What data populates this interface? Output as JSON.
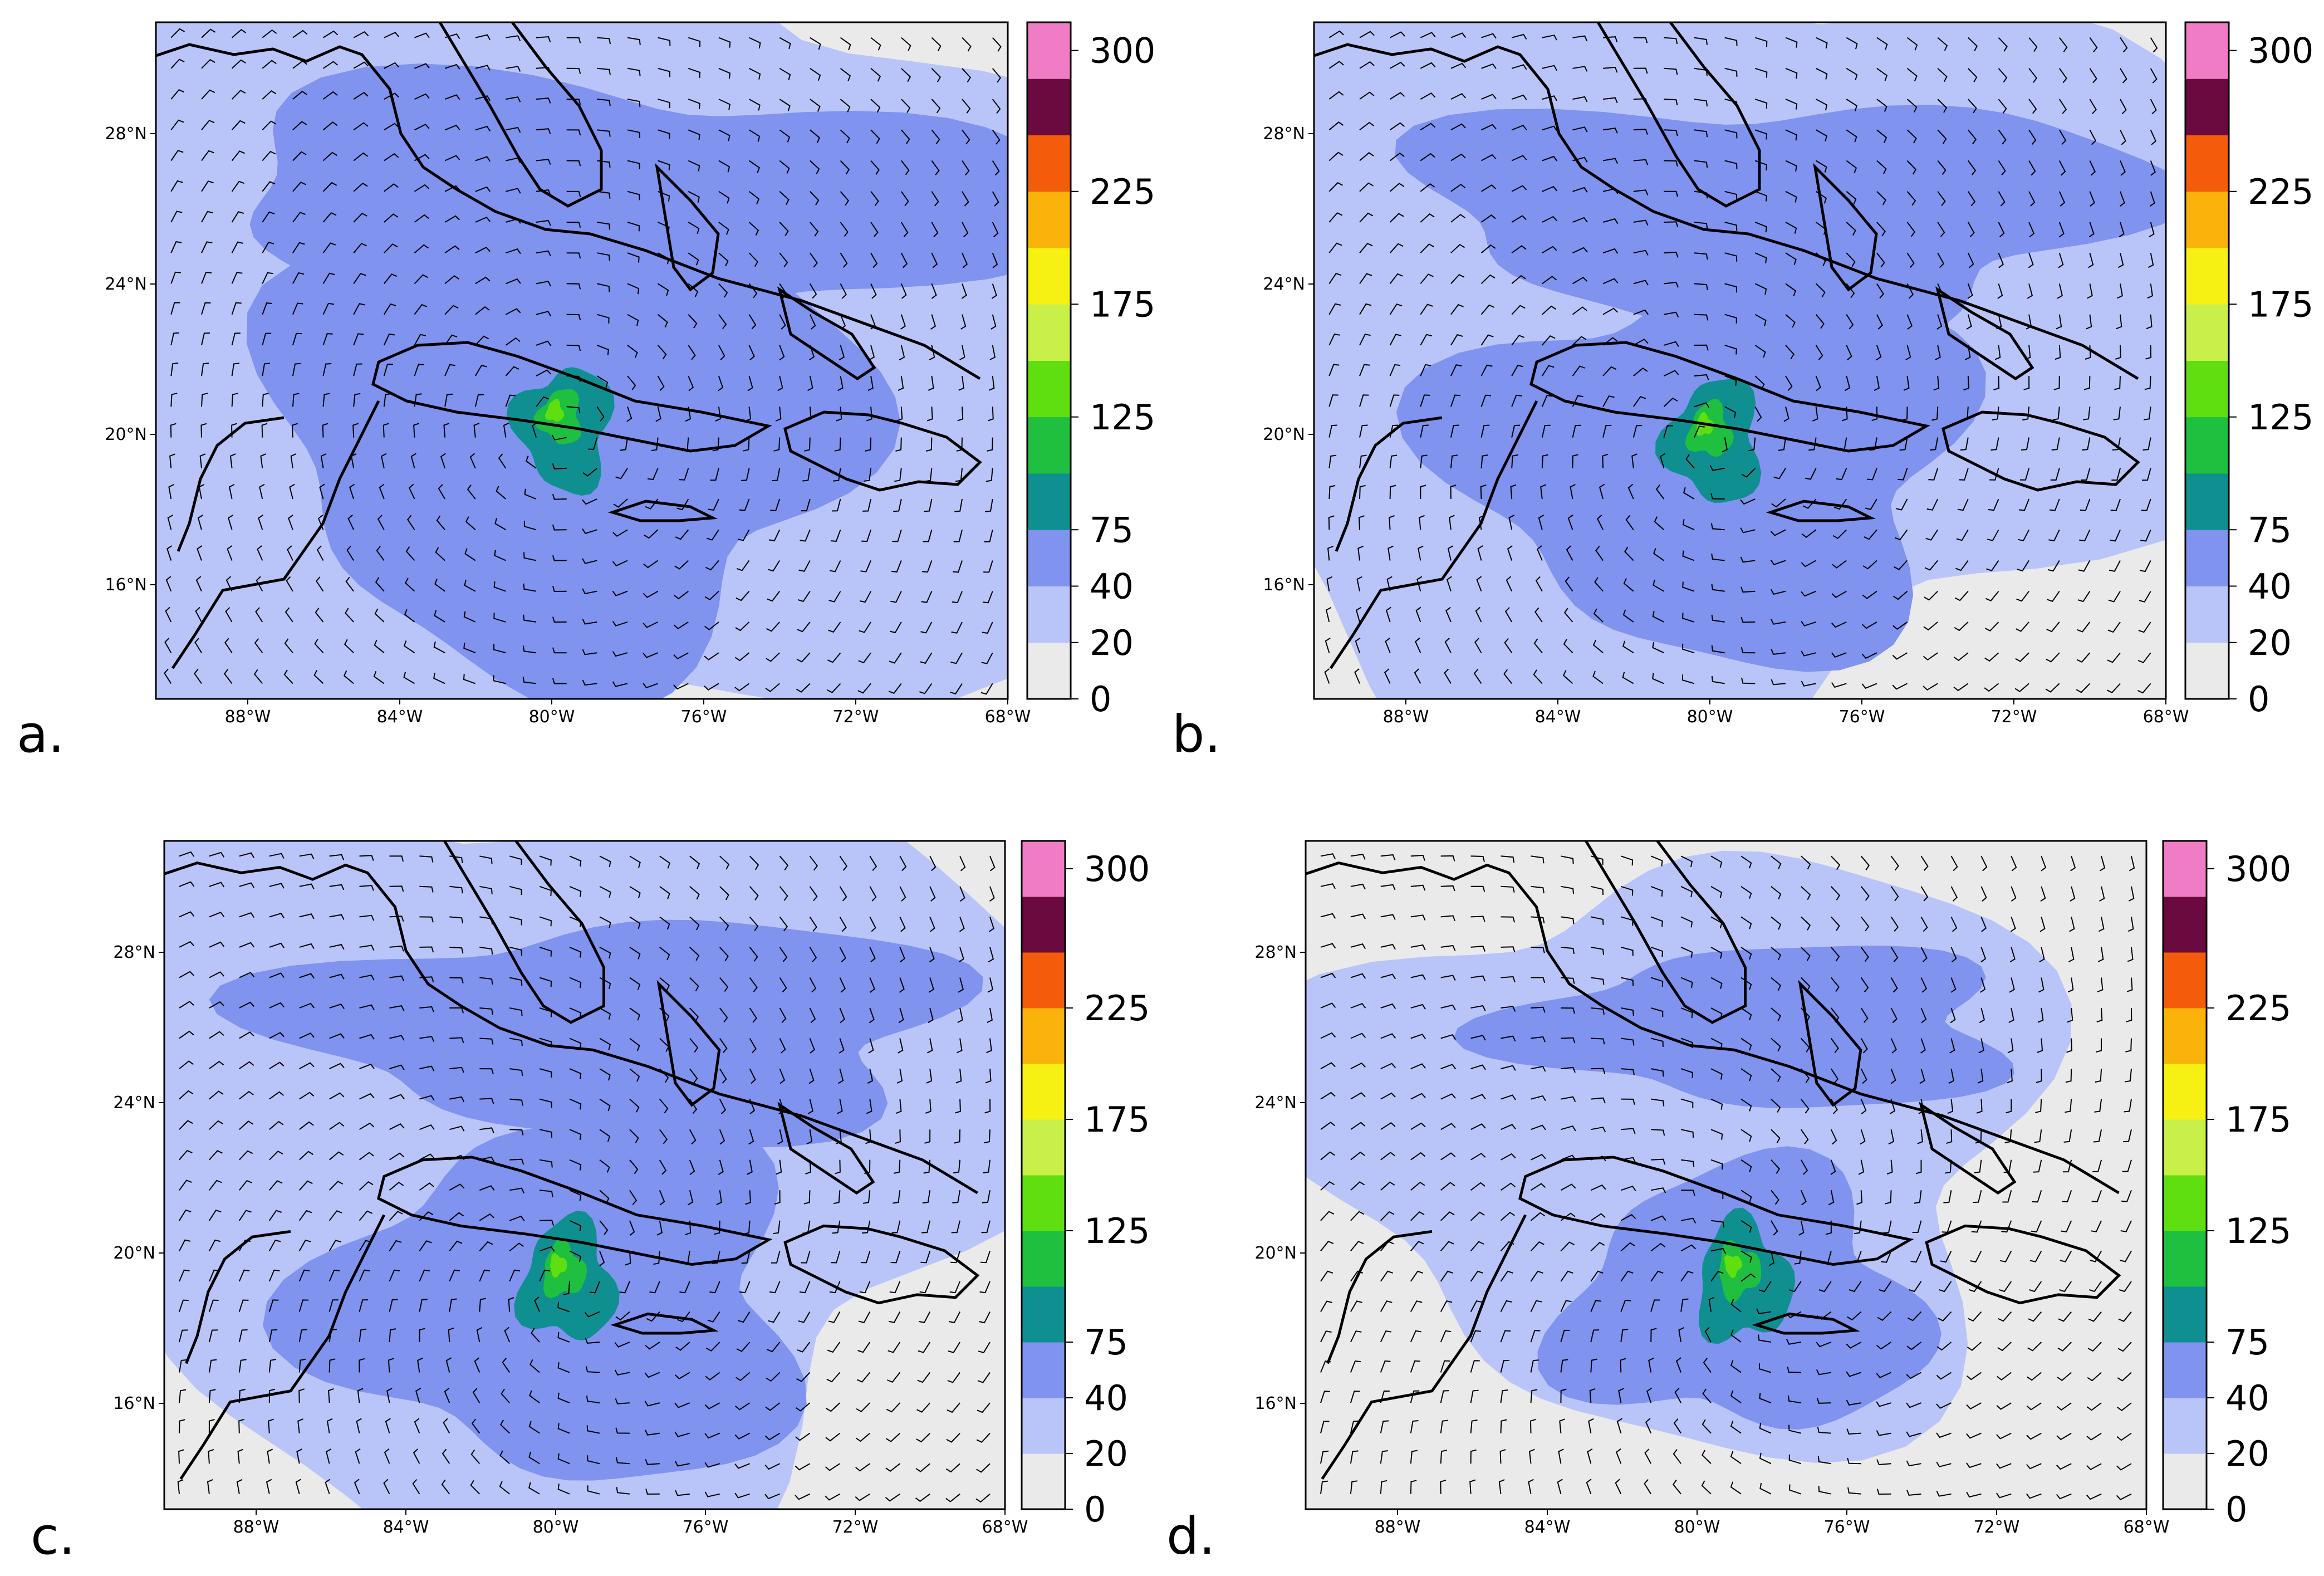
{
  "figure": {
    "panels": [
      {
        "id": "a",
        "label": "a."
      },
      {
        "id": "b",
        "label": "b."
      },
      {
        "id": "c",
        "label": "c."
      },
      {
        "id": "d",
        "label": "d."
      }
    ],
    "lon_ticks": [
      "88°W",
      "84°W",
      "80°W",
      "76°W",
      "72°W",
      "68°W"
    ],
    "lat_ticks": [
      "28°N",
      "24°N",
      "20°N",
      "16°N"
    ],
    "colorbar": {
      "tick_labels": [
        "300",
        "225",
        "175",
        "125",
        "75",
        "40",
        "20",
        "0"
      ],
      "colors": [
        "#eaeaea",
        "#b9c5f8",
        "#7f93ef",
        "#0f8f8f",
        "#1fbf3f",
        "#5fdf0f",
        "#c8f048",
        "#f7f013",
        "#f9b30b",
        "#f45c0c",
        "#6b0a3e",
        "#f07cc6"
      ]
    },
    "colors": {
      "land_outline": "#000000",
      "background_fill": "#eaeaea",
      "light_band": "#b9c5f8",
      "mid_band": "#7f93ef",
      "core_teal": "#0f8f8f",
      "core_green": "#1fbf3f",
      "core_lime": "#5fdf0f"
    }
  }
}
